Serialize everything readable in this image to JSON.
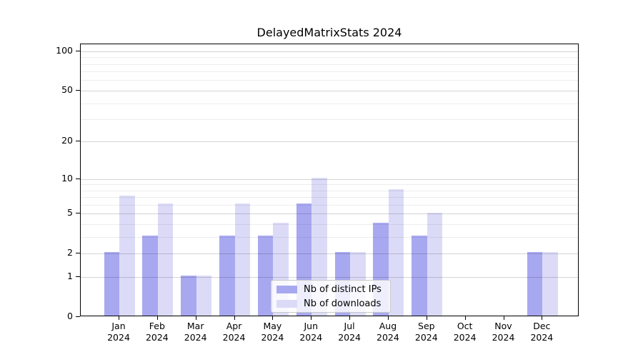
{
  "chart_data": {
    "type": "bar",
    "title": "DelayedMatrixStats 2024",
    "x_categories": [
      "Jan",
      "Feb",
      "Mar",
      "Apr",
      "May",
      "Jun",
      "Jul",
      "Aug",
      "Sep",
      "Oct",
      "Nov",
      "Dec"
    ],
    "x_sublabel": "2024",
    "series": [
      {
        "name": "Nb of distinct IPs",
        "color": "#a8a8f0",
        "values": [
          2,
          3,
          1,
          3,
          3,
          6,
          2,
          4,
          3,
          0,
          0,
          2
        ]
      },
      {
        "name": "Nb of downloads",
        "color": "#dbdbf8",
        "values": [
          7,
          6,
          1,
          6,
          4,
          10,
          2,
          8,
          5,
          0,
          0,
          2
        ]
      }
    ],
    "yscale": "log1p",
    "y_axis_ticks": [
      100,
      50,
      20,
      10,
      5,
      2,
      1,
      0
    ],
    "y_minor_gridlines": [
      3,
      4,
      6,
      7,
      8,
      9,
      30,
      40,
      60,
      70,
      80,
      90
    ],
    "ylim": [
      0,
      112
    ],
    "grid": true,
    "legend_position": "lower center",
    "xlabel": "",
    "ylabel": ""
  },
  "colors": {
    "axis": "#000000",
    "major_grid": "rgba(0,0,0,0.17)",
    "minor_grid": "rgba(0,0,0,0.07)",
    "legend_border": "#c9c9c9",
    "legend_background": "rgba(255,255,255,0.8)"
  }
}
